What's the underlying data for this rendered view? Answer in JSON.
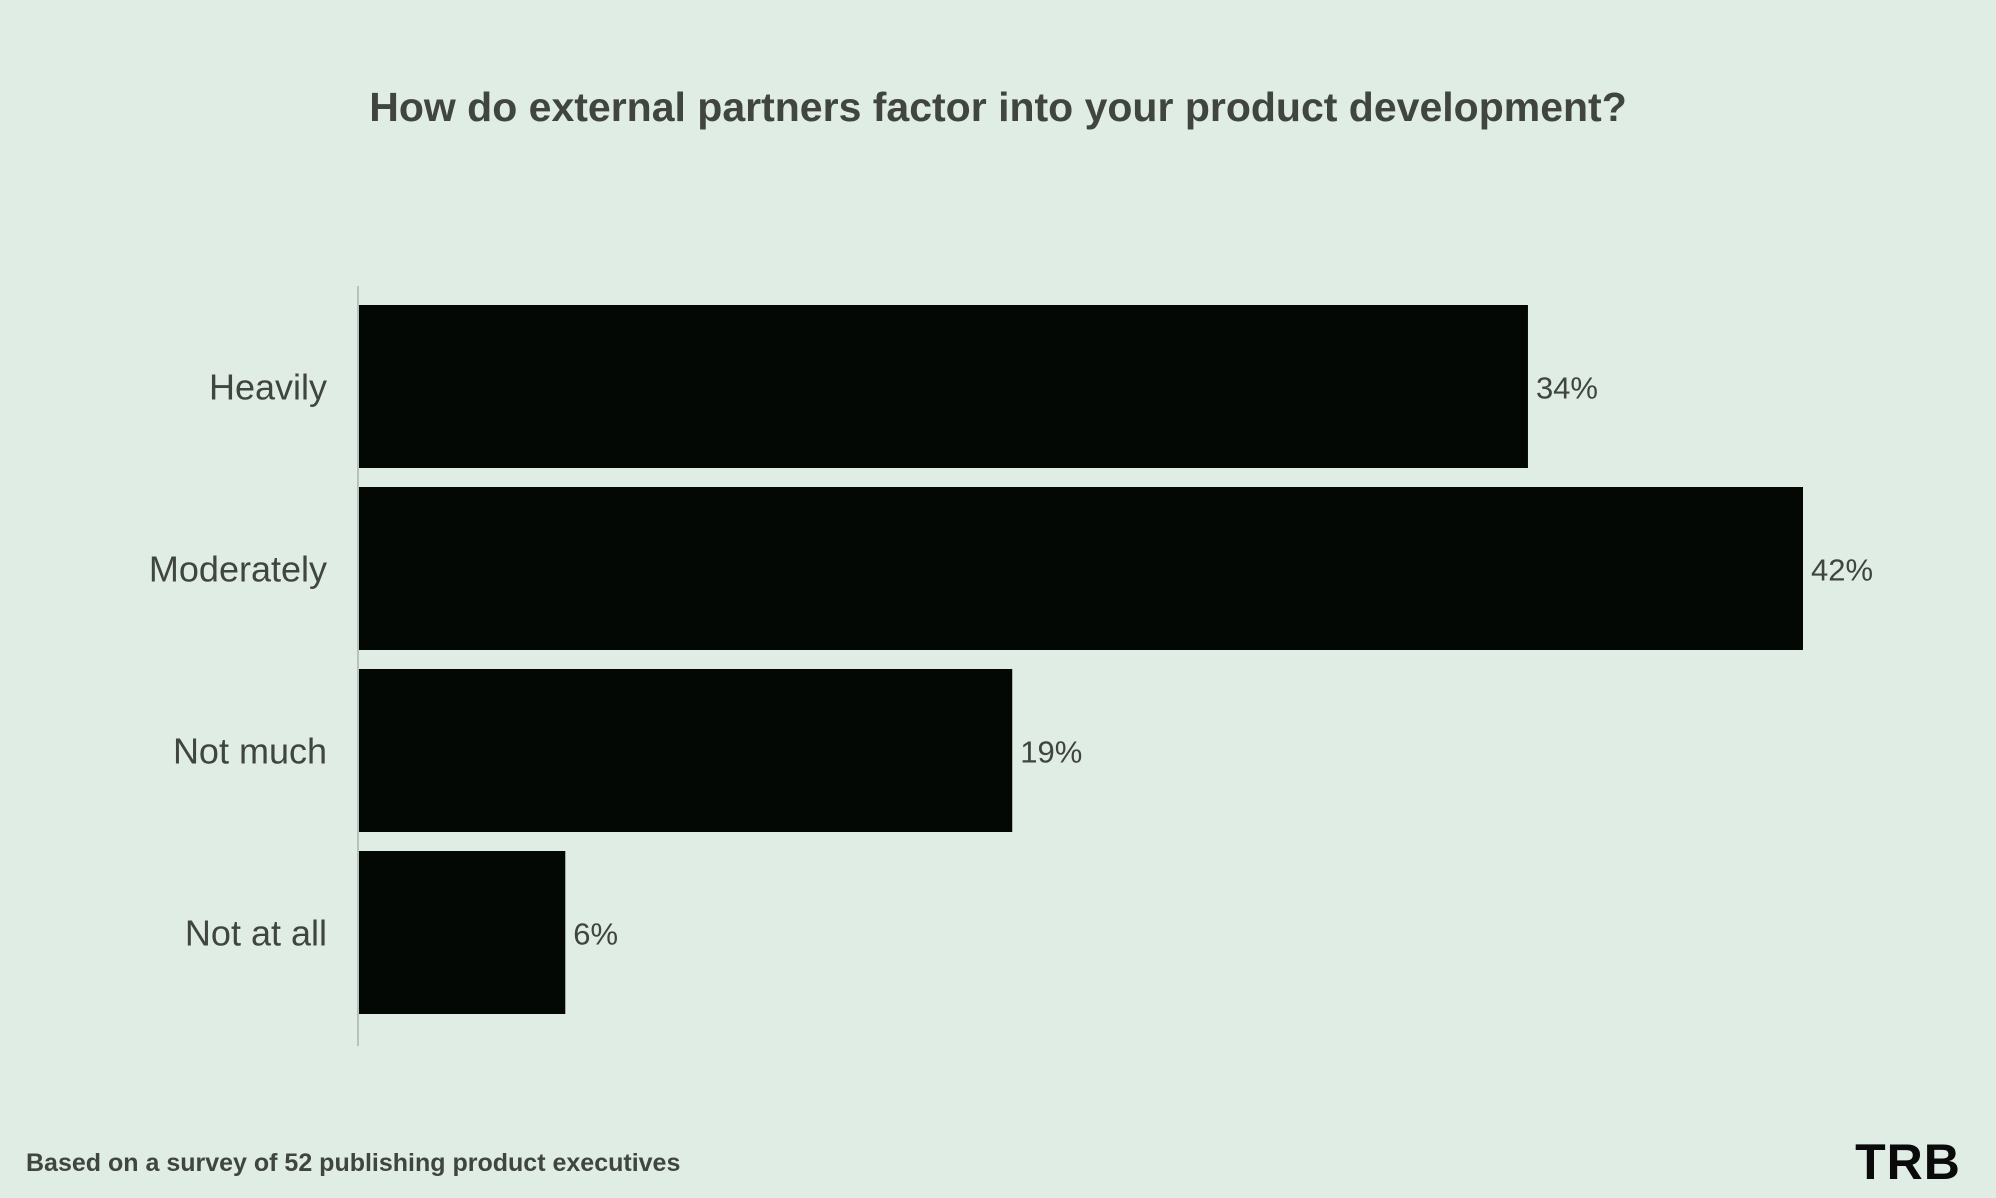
{
  "chart_data": {
    "type": "bar",
    "orientation": "horizontal",
    "title": "How do external partners factor into your product development?",
    "categories": [
      "Heavily",
      "Moderately",
      "Not much",
      "Not at all"
    ],
    "values": [
      34,
      42,
      19,
      6
    ],
    "value_labels": [
      "34%",
      "42%",
      "19%",
      "6%"
    ],
    "unit": "%",
    "xlim": [
      0,
      42
    ],
    "xlabel": "",
    "ylabel": "",
    "grid": false,
    "legend": "none",
    "bar_color": "#040805"
  },
  "footnote": "Based on a survey of 52 publishing product executives",
  "logo": {
    "text": "TRB",
    "color": "#0a0a0a"
  },
  "colors": {
    "background": "#e0ede4",
    "text": "#404540",
    "axis": "#b8c2bb"
  }
}
